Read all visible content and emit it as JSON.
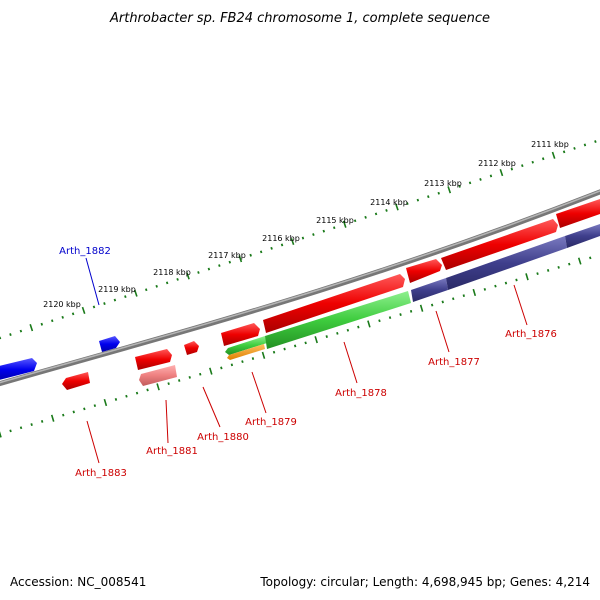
{
  "title": "Arthrobacter sp. FB24 chromosome 1, complete sequence",
  "footer": {
    "accession": "Accession: NC_008541",
    "summary": "Topology: circular; Length: 4,698,945 bp; Genes: 4,214"
  },
  "scale_labels": [
    "2111 kbp",
    "2112 kbp",
    "2113 kbp",
    "2114 kbp",
    "2115 kbp",
    "2116 kbp",
    "2117 kbp",
    "2118 kbp",
    "2119 kbp",
    "2120 kbp"
  ],
  "genes": [
    {
      "name": "Arth_1876",
      "color": "#cc0000"
    },
    {
      "name": "Arth_1877",
      "color": "#cc0000"
    },
    {
      "name": "Arth_1878",
      "color": "#cc0000"
    },
    {
      "name": "Arth_1879",
      "color": "#cc0000"
    },
    {
      "name": "Arth_1880",
      "color": "#cc0000"
    },
    {
      "name": "Arth_1881",
      "color": "#cc0000"
    },
    {
      "name": "Arth_1882",
      "color": "#0000cc"
    },
    {
      "name": "Arth_1883",
      "color": "#cc0000"
    }
  ],
  "colors": {
    "forward_cds": "#0000ee",
    "reverse_cds": "#ee0000",
    "rna": "#3ecc3e",
    "cog_purple": "#3f3f8c",
    "pseudo": "#ee8080",
    "orange": "#ff9900",
    "backbone": "#808080",
    "scale_ticks": "#1a7a1a"
  }
}
